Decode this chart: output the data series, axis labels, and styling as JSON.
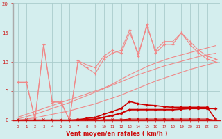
{
  "x": [
    0,
    1,
    2,
    3,
    4,
    5,
    6,
    7,
    8,
    9,
    10,
    11,
    12,
    13,
    14,
    15,
    16,
    17,
    18,
    19,
    20,
    21,
    22,
    23
  ],
  "line_jagged1": [
    6.5,
    6.5,
    0.1,
    13.0,
    3.0,
    3.2,
    0.1,
    10.0,
    9.0,
    8.0,
    10.5,
    11.5,
    12.0,
    15.5,
    11.0,
    16.5,
    11.5,
    13.0,
    13.0,
    15.0,
    13.0,
    11.5,
    10.5,
    10.0
  ],
  "line_jagged2": [
    6.5,
    6.5,
    0.1,
    13.0,
    3.2,
    3.0,
    0.1,
    10.2,
    9.5,
    9.0,
    11.0,
    12.0,
    11.5,
    15.0,
    11.5,
    16.0,
    12.0,
    13.5,
    13.5,
    15.0,
    13.5,
    12.0,
    11.0,
    10.5
  ],
  "trend1": [
    0.5,
    1.0,
    1.5,
    2.0,
    2.5,
    3.0,
    3.5,
    4.0,
    4.5,
    5.0,
    5.5,
    6.2,
    7.0,
    7.8,
    8.5,
    9.2,
    9.8,
    10.3,
    10.8,
    11.2,
    11.6,
    12.0,
    12.4,
    12.8
  ],
  "trend2": [
    0.2,
    0.6,
    1.0,
    1.5,
    2.0,
    2.5,
    3.0,
    3.6,
    4.2,
    4.8,
    5.4,
    6.0,
    6.6,
    7.2,
    7.8,
    8.3,
    8.8,
    9.3,
    9.7,
    10.1,
    10.5,
    10.9,
    11.2,
    11.5
  ],
  "trend3": [
    0.0,
    0.2,
    0.4,
    0.7,
    1.0,
    1.3,
    1.6,
    2.0,
    2.4,
    2.8,
    3.3,
    3.8,
    4.3,
    4.9,
    5.5,
    6.1,
    6.7,
    7.2,
    7.7,
    8.2,
    8.7,
    9.1,
    9.5,
    9.9
  ],
  "dark_line1": [
    0.0,
    0.0,
    0.0,
    0.0,
    0.0,
    0.0,
    0.0,
    0.1,
    0.3,
    0.5,
    1.0,
    1.5,
    2.0,
    3.2,
    2.8,
    2.6,
    2.5,
    2.3,
    2.2,
    2.2,
    2.2,
    2.2,
    2.2,
    0.1
  ],
  "dark_line2": [
    0.0,
    0.0,
    0.0,
    0.0,
    0.0,
    0.0,
    0.0,
    0.0,
    0.1,
    0.2,
    0.5,
    0.8,
    1.2,
    1.8,
    1.8,
    1.8,
    1.8,
    1.8,
    1.8,
    1.9,
    2.0,
    2.0,
    2.0,
    2.0
  ],
  "dark_line3": [
    0.0,
    0.0,
    0.0,
    0.0,
    0.0,
    0.0,
    0.0,
    0.0,
    0.0,
    0.0,
    0.1,
    0.1,
    0.1,
    0.2,
    0.2,
    0.2,
    0.2,
    0.2,
    0.2,
    0.2,
    0.2,
    0.2,
    0.2,
    0.0
  ],
  "color_light": "#f08888",
  "color_dark": "#cc1111",
  "color_darkline": "#cc0000",
  "bg_color": "#d4eeee",
  "grid_color": "#aacccc",
  "xlabel": "Vent moyen/en rafales ( km/h )",
  "ylim": [
    0,
    20
  ],
  "xlim": [
    -0.5,
    23.5
  ]
}
